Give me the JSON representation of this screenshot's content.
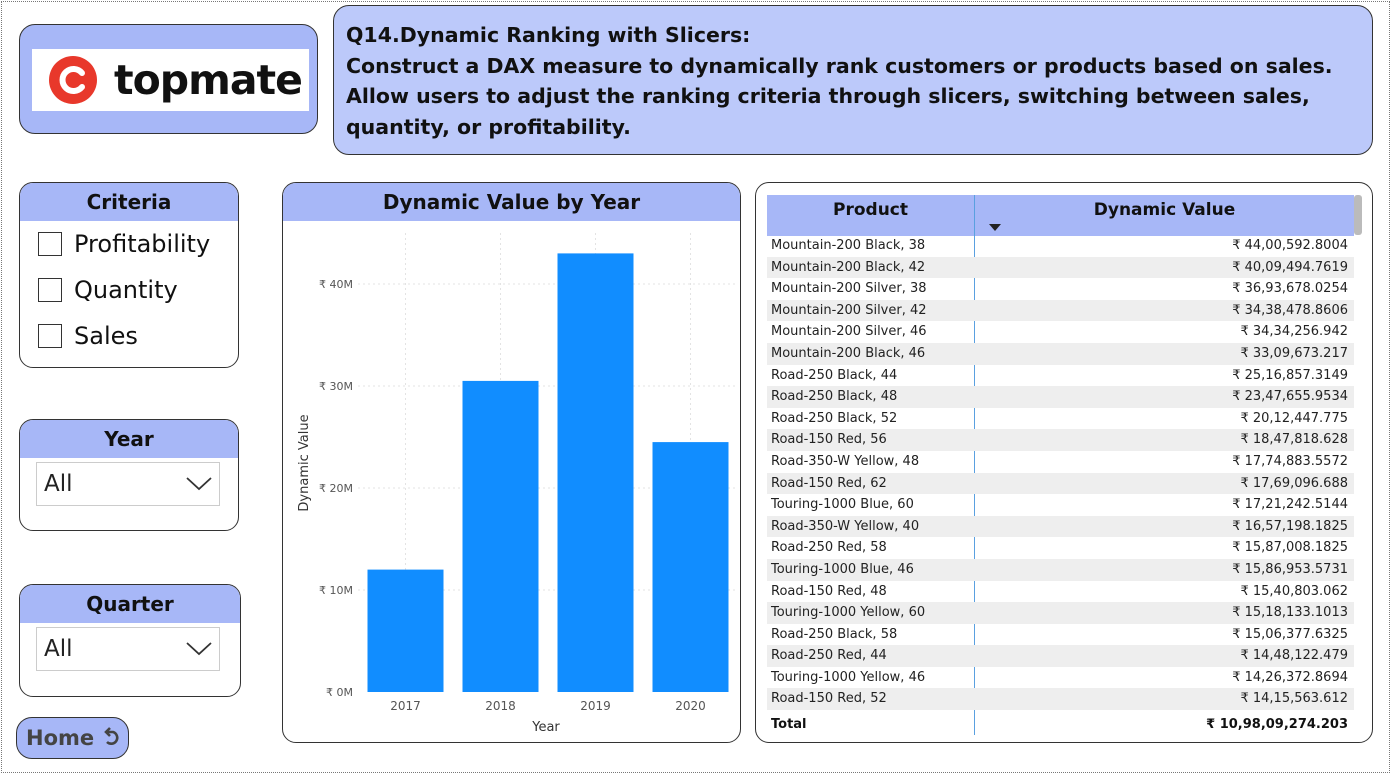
{
  "logo": {
    "text": "topmate"
  },
  "question": {
    "title": "Q14.Dynamic Ranking with Slicers:",
    "body": "Construct a DAX measure to dynamically rank customers or products based on sales. Allow users to adjust the ranking criteria through slicers, switching between sales, quantity, or profitability."
  },
  "criteria": {
    "title": "Criteria",
    "options": [
      {
        "label": "Profitability",
        "checked": false
      },
      {
        "label": "Quantity",
        "checked": false
      },
      {
        "label": "Sales",
        "checked": false
      }
    ]
  },
  "year_slicer": {
    "title": "Year",
    "value": "All"
  },
  "quarter_slicer": {
    "title": "Quarter",
    "value": "All"
  },
  "home_button": {
    "label": "Home",
    "icon": "undo-arrow-icon"
  },
  "colors": {
    "accent": "#a7b7f7",
    "header_bg": "#bcc9fa",
    "bar": "#118dff",
    "logo_red": "#e8382b"
  },
  "chart_data": {
    "type": "bar",
    "title": "Dynamic Value by Year",
    "xlabel": "Year",
    "ylabel": "Dynamic Value",
    "categories": [
      "2017",
      "2018",
      "2019",
      "2020"
    ],
    "values": [
      12000000,
      30500000,
      43000000,
      24500000
    ],
    "ylim": [
      0,
      45000000
    ],
    "yticks": [
      0,
      10000000,
      20000000,
      30000000,
      40000000
    ],
    "ytick_labels": [
      "₹ 0M",
      "₹ 10M",
      "₹ 20M",
      "₹ 30M",
      "₹ 40M"
    ],
    "grid": true
  },
  "table": {
    "columns": [
      "Product",
      "Dynamic Value"
    ],
    "sorted_column": "Dynamic Value",
    "rows": [
      [
        "Mountain-200 Black, 38",
        "₹ 44,00,592.8004"
      ],
      [
        "Mountain-200 Black, 42",
        "₹ 40,09,494.7619"
      ],
      [
        "Mountain-200 Silver, 38",
        "₹ 36,93,678.0254"
      ],
      [
        "Mountain-200 Silver, 42",
        "₹ 34,38,478.8606"
      ],
      [
        "Mountain-200 Silver, 46",
        "₹ 34,34,256.942"
      ],
      [
        "Mountain-200 Black, 46",
        "₹ 33,09,673.217"
      ],
      [
        "Road-250 Black, 44",
        "₹ 25,16,857.3149"
      ],
      [
        "Road-250 Black, 48",
        "₹ 23,47,655.9534"
      ],
      [
        "Road-250 Black, 52",
        "₹ 20,12,447.775"
      ],
      [
        "Road-150 Red, 56",
        "₹ 18,47,818.628"
      ],
      [
        "Road-350-W Yellow, 48",
        "₹ 17,74,883.5572"
      ],
      [
        "Road-150 Red, 62",
        "₹ 17,69,096.688"
      ],
      [
        "Touring-1000 Blue, 60",
        "₹ 17,21,242.5144"
      ],
      [
        "Road-350-W Yellow, 40",
        "₹ 16,57,198.1825"
      ],
      [
        "Road-250 Red, 58",
        "₹ 15,87,008.1825"
      ],
      [
        "Touring-1000 Blue, 46",
        "₹ 15,86,953.5731"
      ],
      [
        "Road-150 Red, 48",
        "₹ 15,40,803.062"
      ],
      [
        "Touring-1000 Yellow, 60",
        "₹ 15,18,133.1013"
      ],
      [
        "Road-250 Black, 58",
        "₹ 15,06,377.6325"
      ],
      [
        "Road-250 Red, 44",
        "₹ 14,48,122.479"
      ],
      [
        "Touring-1000 Yellow, 46",
        "₹ 14,26,372.8694"
      ],
      [
        "Road-150 Red, 52",
        "₹ 14,15,563.612"
      ]
    ],
    "total_label": "Total",
    "total_value": "₹ 10,98,09,274.203"
  }
}
